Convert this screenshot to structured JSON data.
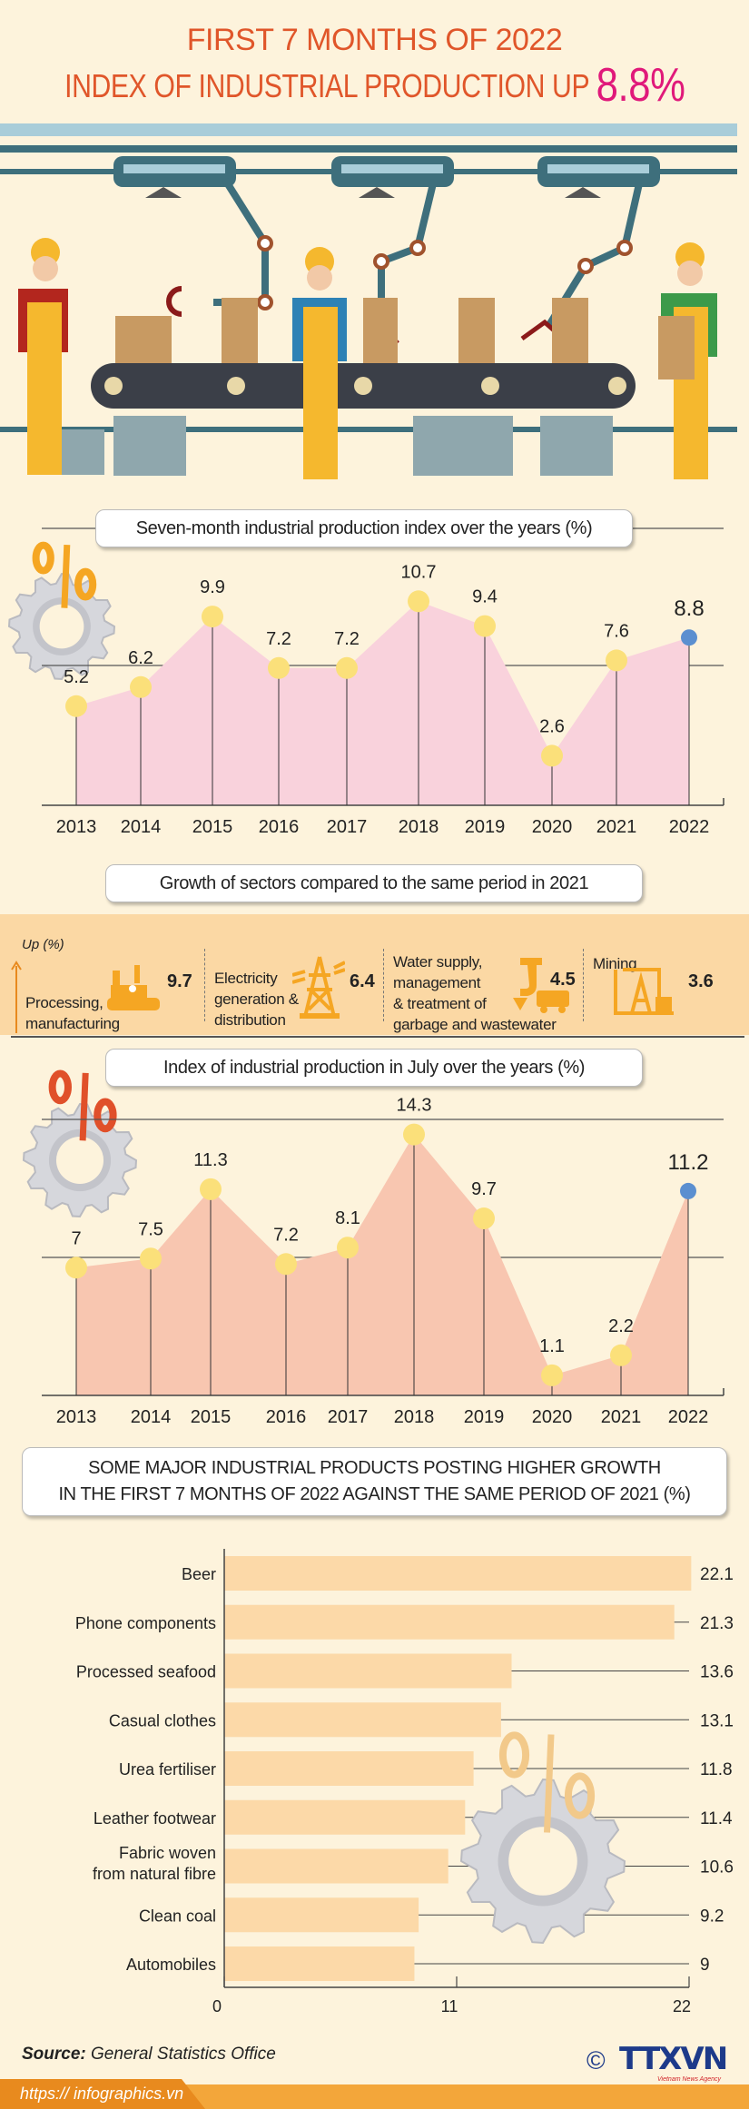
{
  "header": {
    "title_line1": "FIRST 7 MONTHS OF 2022",
    "title_line2": "INDEX OF INDUSTRIAL PRODUCTION UP",
    "highlight": "8.8%"
  },
  "colors": {
    "background": "#fdf3dc",
    "title": "#e0562a",
    "highlight": "#e0197a",
    "chart1_fill": "#f9d2dc",
    "chart2_fill": "#f8c6b0",
    "point": "#fbe07a",
    "current_point": "#5b8fd0",
    "bar": "#fcd9a8",
    "band": "#fbd8a4"
  },
  "sectors": {
    "title": "Growth of sectors compared to the same period in 2021",
    "unit_label": "Up (%)",
    "items": [
      {
        "label_lines": [
          "Processing,",
          "manufacturing"
        ],
        "value": "9.7",
        "icon": "factory-icon"
      },
      {
        "label_lines": [
          "Electricity",
          "generation &",
          "distribution"
        ],
        "value": "6.4",
        "icon": "power-tower-icon"
      },
      {
        "label_lines": [
          "Water supply,",
          "management",
          "& treatment of",
          "garbage and wastewater"
        ],
        "value": "4.5",
        "icon": "water-tap-truck-icon"
      },
      {
        "label_lines": [
          "Mining"
        ],
        "value": "3.6",
        "icon": "oil-pump-icon"
      }
    ]
  },
  "chart_data": [
    {
      "type": "area",
      "title": "Seven-month industrial production index over the years (%)",
      "categories": [
        "2013",
        "2014",
        "2015",
        "2016",
        "2017",
        "2018",
        "2019",
        "2020",
        "2021",
        "2022"
      ],
      "values": [
        5.2,
        6.2,
        9.9,
        7.2,
        7.2,
        10.7,
        9.4,
        2.6,
        7.6,
        8.8
      ],
      "data_labels": [
        "5.2",
        "6.2",
        "9.9",
        "7.2",
        "7.2",
        "10.7",
        "9.4",
        "2.6",
        "7.6",
        "8.8"
      ],
      "highlight_index": 9,
      "ylim": [
        0,
        12
      ]
    },
    {
      "type": "area",
      "title": "Index of industrial production in July over the years (%)",
      "categories": [
        "2013",
        "2014",
        "2015",
        "2016",
        "2017",
        "2018",
        "2019",
        "2020",
        "2021",
        "2022"
      ],
      "values": [
        7,
        7.5,
        11.3,
        7.2,
        8.1,
        14.3,
        9.7,
        1.1,
        2.2,
        11.2
      ],
      "data_labels": [
        "7",
        "7.5",
        "11.3",
        "7.2",
        "8.1",
        "14.3",
        "9.7",
        "1.1",
        "2.2",
        "11.2"
      ],
      "highlight_index": 9,
      "ylim": [
        0,
        15
      ]
    },
    {
      "type": "bar",
      "orientation": "horizontal",
      "title_line1": "SOME MAJOR INDUSTRIAL PRODUCTS POSTING HIGHER GROWTH",
      "title_line2": "IN THE FIRST 7 MONTHS OF 2022 AGAINST THE SAME PERIOD OF 2021 (%)",
      "categories": [
        [
          "Beer"
        ],
        [
          "Phone components"
        ],
        [
          "Processed seafood"
        ],
        [
          "Casual clothes"
        ],
        [
          "Urea fertiliser"
        ],
        [
          "Leather footwear"
        ],
        [
          "Fabric woven",
          "from natural fibre"
        ],
        [
          "Clean coal"
        ],
        [
          "Automobiles"
        ]
      ],
      "values": [
        22.1,
        21.3,
        13.6,
        13.1,
        11.8,
        11.4,
        10.6,
        9.2,
        9
      ],
      "data_labels": [
        "22.1",
        "21.3",
        "13.6",
        "13.1",
        "11.8",
        "11.4",
        "10.6",
        "9.2",
        "9"
      ],
      "xticks": [
        "0",
        "11",
        "22"
      ],
      "xlim": [
        0,
        22
      ]
    }
  ],
  "footer": {
    "source_label": "Source:",
    "source_value": "General Statistics Office",
    "url": "https:// infographics.vn",
    "copyright": "©",
    "logo_text": "TTXVN",
    "logo_sub": "Vietnam News Agency"
  }
}
